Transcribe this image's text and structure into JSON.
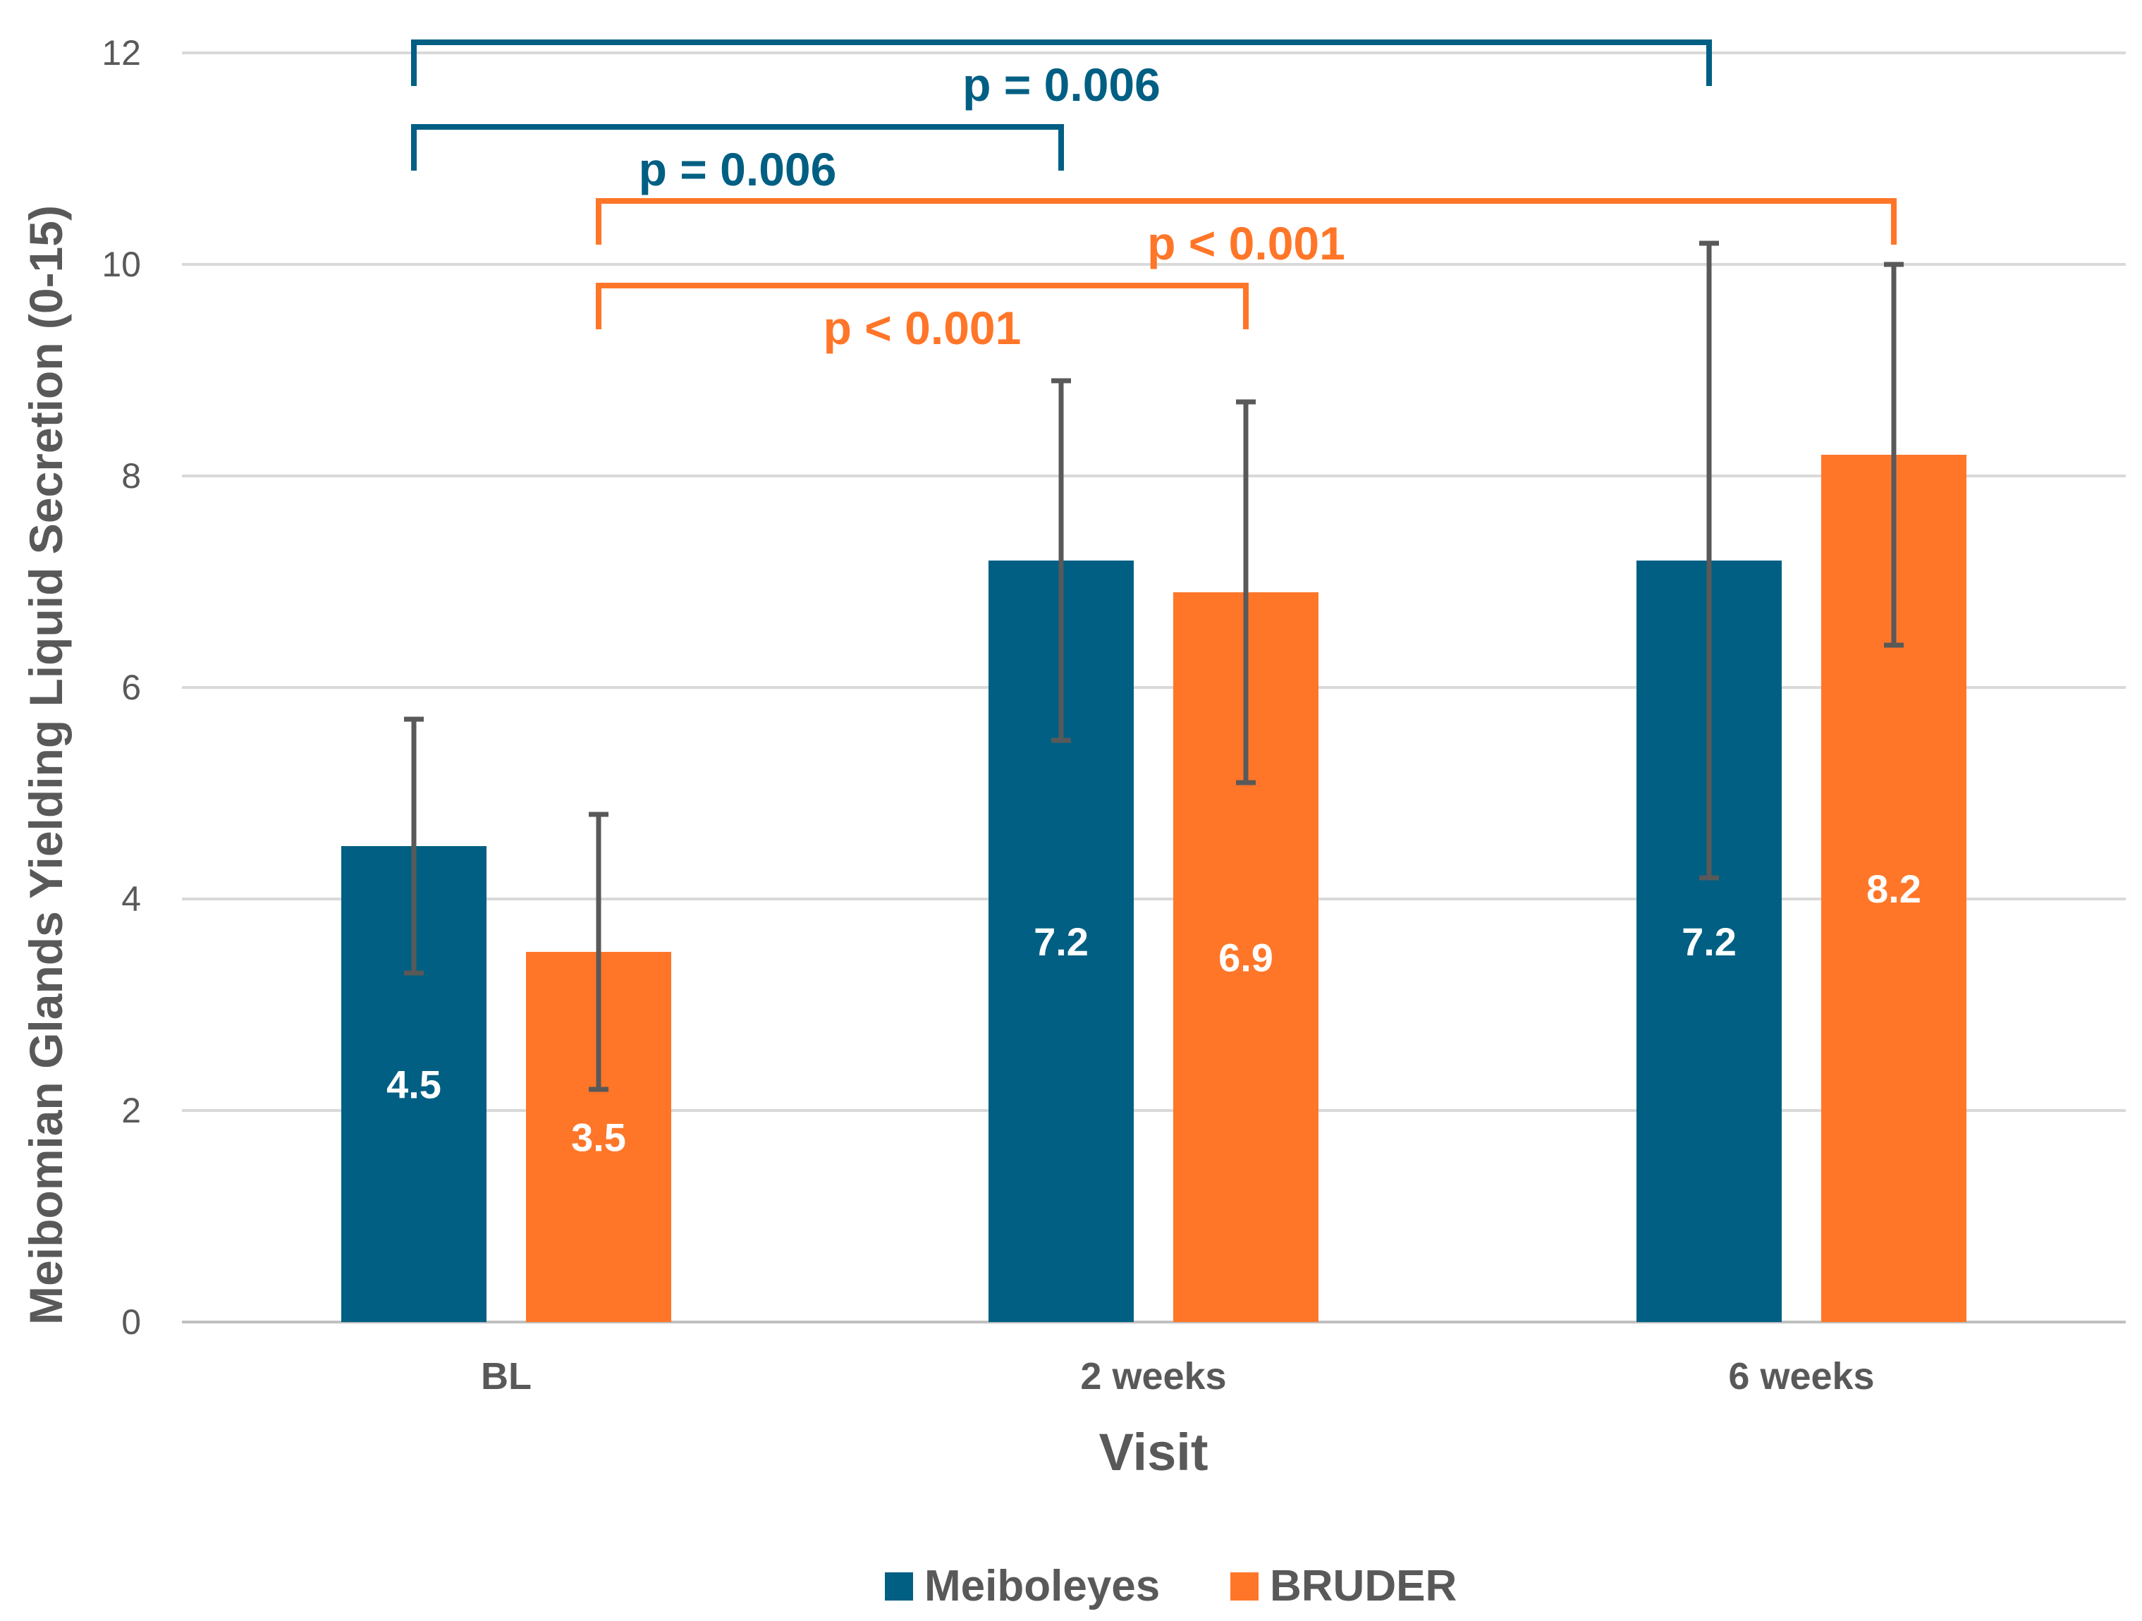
{
  "chart_data": {
    "type": "bar",
    "xlabel": "Visit",
    "ylabel": "Meibomian Glands Yielding Liquid Secretion (0-15)",
    "ylim": [
      0,
      12
    ],
    "yticks": [
      "0",
      "2",
      "4",
      "6",
      "8",
      "10",
      "12"
    ],
    "grid": true,
    "legend_position": "bottom",
    "categories": [
      "BL",
      "2 weeks",
      "6 weeks"
    ],
    "series": [
      {
        "name": "Meiboleyes",
        "color": "#005F83",
        "values": [
          4.5,
          7.2,
          7.2
        ],
        "labels": [
          "4.5",
          "7.2",
          "7.2"
        ],
        "error_low": [
          3.3,
          5.5,
          4.2
        ],
        "error_high": [
          5.7,
          8.9,
          10.2
        ]
      },
      {
        "name": "BRUDER",
        "color": "#FF7629",
        "values": [
          3.5,
          6.9,
          8.2
        ],
        "labels": [
          "3.5",
          "6.9",
          "8.2"
        ],
        "error_low": [
          2.2,
          5.1,
          6.4
        ],
        "error_high": [
          4.8,
          8.7,
          10.0
        ]
      }
    ],
    "error_bar_color": "#595959",
    "annotations": [
      {
        "text": "p = 0.006",
        "series": 0,
        "from_category": 0,
        "to_category": 2,
        "y": 12.1,
        "color": "#005F83"
      },
      {
        "text": "p = 0.006",
        "series": 0,
        "from_category": 0,
        "to_category": 1,
        "y": 11.3,
        "color": "#005F83"
      },
      {
        "text": "p < 0.001",
        "series": 1,
        "from_category": 0,
        "to_category": 2,
        "y": 10.6,
        "color": "#FF7629"
      },
      {
        "text": "p < 0.001",
        "series": 1,
        "from_category": 0,
        "to_category": 1,
        "y": 9.8,
        "color": "#FF7629"
      }
    ]
  }
}
